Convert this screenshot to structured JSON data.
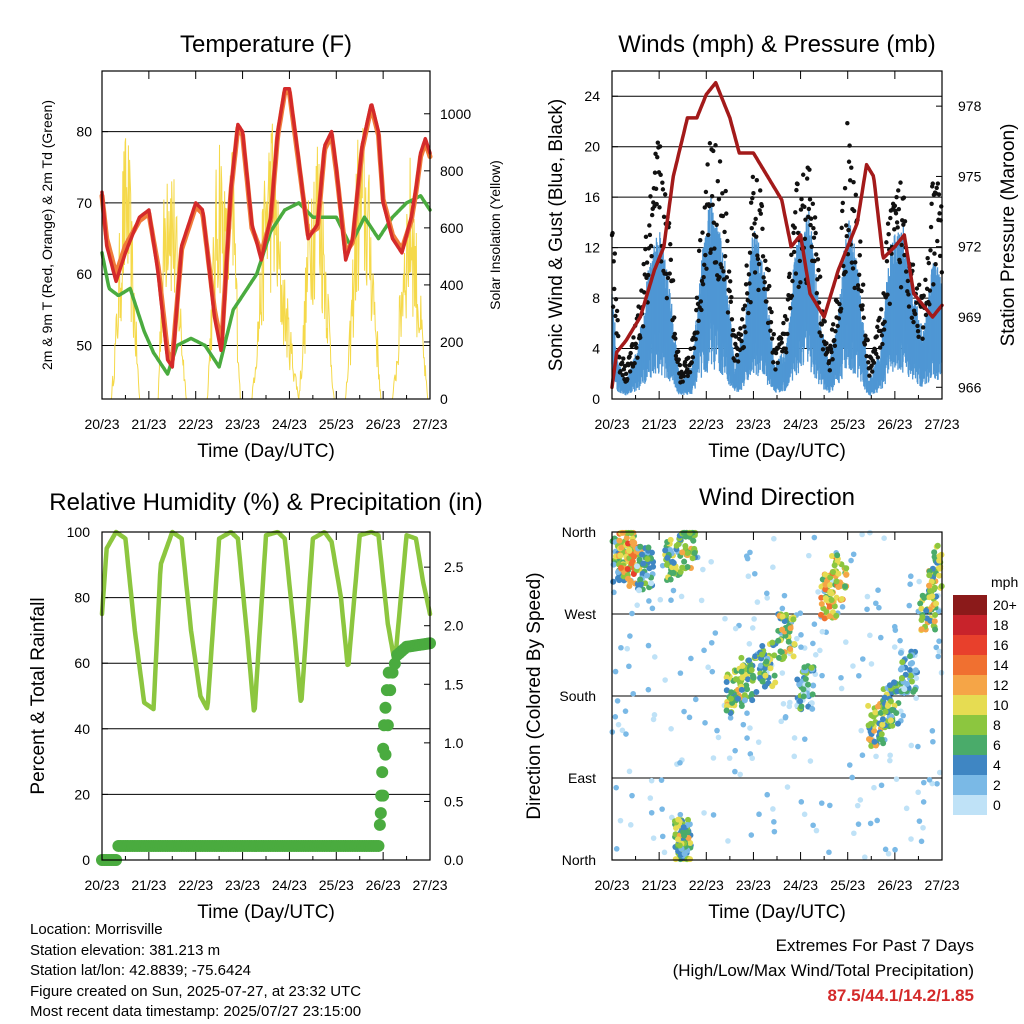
{
  "chart_data": [
    {
      "type": "line",
      "title": "Temperature (F)",
      "xlabel": "Time (Day/UTC)",
      "ylabel": "2m & 9m T (Red, Orange) & 2m Td (Green)",
      "y2label": "Solar Insolation (Yellow)",
      "x_ticks": [
        "20/23",
        "21/23",
        "22/23",
        "23/23",
        "24/23",
        "25/23",
        "26/23",
        "27/23"
      ],
      "xlim": [
        0,
        7
      ],
      "ylim": [
        42.5,
        88.5
      ],
      "y_ticks": [
        50,
        60,
        70,
        80
      ],
      "y2lim": [
        0,
        1150
      ],
      "y2_ticks": [
        0,
        200,
        400,
        600,
        800,
        1000
      ],
      "grid": true,
      "series": [
        {
          "color": "#d42a2a",
          "x": [
            0,
            0.1,
            0.3,
            0.5,
            0.8,
            1.0,
            1.2,
            1.4,
            1.5,
            1.7,
            1.9,
            2.0,
            2.15,
            2.4,
            2.55,
            2.75,
            2.9,
            3.0,
            3.2,
            3.4,
            3.6,
            3.75,
            3.9,
            4.0,
            4.2,
            4.4,
            4.6,
            4.75,
            4.9,
            5.0,
            5.2,
            5.35,
            5.55,
            5.75,
            5.9,
            6.0,
            6.2,
            6.4,
            6.6,
            6.7,
            6.8,
            6.9,
            7.0
          ],
          "values": [
            71.5,
            64,
            59,
            63,
            68,
            69,
            60,
            48,
            47,
            64,
            68,
            70,
            69,
            54,
            49,
            72,
            81,
            80,
            67,
            62,
            68,
            80,
            86,
            86,
            76,
            65,
            67,
            78,
            80,
            75,
            62,
            65,
            78,
            84,
            80,
            70,
            65,
            63,
            68,
            72,
            77,
            79,
            77
          ]
        },
        {
          "color": "#f07c3a",
          "x": [
            0,
            0.1,
            0.3,
            0.5,
            0.8,
            1.0,
            1.2,
            1.4,
            1.5,
            1.7,
            1.9,
            2.0,
            2.15,
            2.4,
            2.55,
            2.75,
            2.9,
            3.0,
            3.2,
            3.4,
            3.6,
            3.75,
            3.9,
            4.0,
            4.2,
            4.4,
            4.6,
            4.75,
            4.9,
            5.0,
            5.2,
            5.35,
            5.55,
            5.75,
            5.9,
            6.0,
            6.2,
            6.4,
            6.6,
            6.7,
            6.8,
            6.9,
            7.0
          ],
          "values": [
            71,
            65,
            60,
            64,
            67.5,
            68.5,
            61,
            49,
            48,
            63.5,
            67.5,
            69.5,
            68.5,
            55,
            50,
            71.5,
            80.5,
            79.5,
            66.5,
            63,
            67.5,
            79.5,
            85.5,
            85.5,
            75.5,
            65.5,
            66.5,
            77.5,
            79.5,
            74.5,
            63,
            64.5,
            77.5,
            83.5,
            79.5,
            70.5,
            65.5,
            63.5,
            67.5,
            71.5,
            76.5,
            78.5,
            76.5
          ]
        },
        {
          "color": "#4aab3f",
          "x": [
            0,
            0.15,
            0.35,
            0.6,
            0.9,
            1.1,
            1.4,
            1.6,
            1.9,
            2.2,
            2.5,
            2.8,
            3.0,
            3.3,
            3.6,
            3.9,
            4.2,
            4.5,
            4.8,
            5.0,
            5.3,
            5.6,
            5.9,
            6.2,
            6.5,
            6.8,
            7.0
          ],
          "values": [
            63,
            58,
            57,
            58,
            52,
            49,
            46,
            50,
            51,
            50,
            47,
            55,
            57,
            60,
            66,
            69,
            70,
            68,
            68,
            68,
            64,
            68,
            65,
            68,
            70,
            71,
            69
          ]
        },
        {
          "color": "#f5d94a",
          "axis": "y2",
          "x": [
            0,
            0.2,
            0.3,
            0.45,
            0.55,
            0.65,
            0.8,
            1.2,
            1.25,
            1.4,
            1.55,
            1.7,
            1.8,
            2.25,
            2.35,
            2.5,
            2.65,
            2.8,
            2.95,
            3.2,
            3.35,
            3.5,
            3.65,
            3.8,
            4.2,
            4.3,
            4.45,
            4.6,
            4.75,
            4.95,
            5.2,
            5.3,
            5.45,
            5.6,
            5.75,
            5.95,
            6.2,
            6.3,
            6.45,
            6.6,
            6.75,
            6.95,
            7.0
          ],
          "values": [
            0,
            0,
            300,
            900,
            1000,
            600,
            0,
            0,
            400,
            1100,
            800,
            300,
            0,
            0,
            500,
            1050,
            700,
            950,
            0,
            0,
            400,
            950,
            1050,
            600,
            0,
            300,
            900,
            1000,
            700,
            0,
            0,
            300,
            950,
            1000,
            700,
            0,
            0,
            200,
            700,
            900,
            500,
            0,
            0
          ]
        }
      ]
    },
    {
      "type": "scatter",
      "title": "Winds (mph) & Pressure (mb)",
      "xlabel": "Time (Day/UTC)",
      "ylabel": "Sonic Wind & Gust (Blue, Black)",
      "y2label": "Station Pressure (Maroon)",
      "x_ticks": [
        "20/23",
        "21/23",
        "22/23",
        "23/23",
        "24/23",
        "25/23",
        "26/23",
        "27/23"
      ],
      "xlim": [
        0,
        7
      ],
      "ylim": [
        0,
        26
      ],
      "y_ticks": [
        0,
        4,
        8,
        12,
        16,
        20,
        24
      ],
      "y2lim": [
        965.5,
        979.5
      ],
      "y2_ticks": [
        966,
        969,
        972,
        975,
        978
      ],
      "grid": true,
      "series": [
        {
          "color": "#a31a1a",
          "axis": "y2",
          "x": [
            0,
            0.1,
            0.3,
            0.6,
            0.9,
            1.1,
            1.3,
            1.6,
            1.8,
            2.0,
            2.2,
            2.5,
            2.7,
            3.0,
            3.3,
            3.6,
            3.8,
            4.0,
            4.2,
            4.5,
            4.8,
            5.0,
            5.2,
            5.4,
            5.55,
            5.75,
            6.0,
            6.2,
            6.4,
            6.6,
            6.8,
            7.0
          ],
          "values": [
            966,
            967.5,
            968,
            969,
            971,
            972,
            975,
            977.5,
            977.5,
            978.5,
            979,
            977.5,
            976,
            976,
            975,
            974,
            972,
            972.5,
            970,
            969,
            971,
            972,
            973,
            975.5,
            975,
            971.5,
            972,
            972.5,
            970,
            969.5,
            969,
            969.5
          ]
        },
        {
          "color": "#4f97d4",
          "x": [
            0,
            0.15,
            0.3,
            0.55,
            0.8,
            1.0,
            1.2,
            1.45,
            1.7,
            1.9,
            2.1,
            2.4,
            2.6,
            2.8,
            3.0,
            3.2,
            3.45,
            3.7,
            3.9,
            4.2,
            4.4,
            4.6,
            4.8,
            5.0,
            5.2,
            5.45,
            5.7,
            5.9,
            6.2,
            6.4,
            6.6,
            6.8,
            7.0
          ],
          "values": [
            6,
            2,
            1,
            3,
            8,
            10,
            7,
            1,
            2,
            8,
            12,
            8,
            2,
            4,
            10,
            8,
            2,
            3,
            9,
            11,
            5,
            2,
            5,
            11,
            8,
            1,
            3,
            9,
            10,
            6,
            4,
            8,
            7
          ]
        },
        {
          "color": "#111111",
          "x": [
            0,
            0.15,
            0.3,
            0.55,
            0.8,
            1.0,
            1.2,
            1.45,
            1.7,
            1.9,
            2.1,
            2.4,
            2.6,
            2.8,
            3.0,
            3.2,
            3.45,
            3.7,
            3.9,
            4.2,
            4.4,
            4.6,
            4.8,
            5.0,
            5.2,
            5.45,
            5.7,
            5.9,
            6.2,
            6.4,
            6.6,
            6.8,
            7.0
          ],
          "values": [
            15,
            4,
            2,
            6,
            14,
            19,
            13,
            2,
            4,
            13,
            19,
            15,
            4,
            7,
            16,
            14,
            4,
            6,
            15,
            17,
            9,
            3,
            9,
            20,
            14,
            3,
            6,
            14,
            16,
            10,
            7,
            15,
            16
          ]
        }
      ]
    },
    {
      "type": "line",
      "title": "Relative Humidity (%) & Precipitation (in)",
      "xlabel": "Time (Day/UTC)",
      "ylabel": "Percent & Total Rainfall",
      "x_ticks": [
        "20/23",
        "21/23",
        "22/23",
        "23/23",
        "24/23",
        "25/23",
        "26/23",
        "27/23"
      ],
      "xlim": [
        0,
        7
      ],
      "ylim": [
        0,
        100
      ],
      "y_ticks": [
        0,
        20,
        40,
        60,
        80,
        100
      ],
      "y2lim": [
        0,
        2.8
      ],
      "y2_ticks": [
        "0.0",
        "0.5",
        "1.0",
        "1.5",
        "2.0",
        "2.5"
      ],
      "grid": true,
      "series": [
        {
          "color": "#8cc63f",
          "x": [
            0,
            0.1,
            0.3,
            0.5,
            0.7,
            0.9,
            1.1,
            1.25,
            1.5,
            1.7,
            1.9,
            2.1,
            2.25,
            2.5,
            2.75,
            2.9,
            3.1,
            3.25,
            3.5,
            3.75,
            3.9,
            4.1,
            4.25,
            4.5,
            4.75,
            4.9,
            5.1,
            5.25,
            5.5,
            5.75,
            5.9,
            6.1,
            6.25,
            6.5,
            6.7,
            6.85,
            7.0
          ],
          "values": [
            75,
            95,
            100,
            98,
            70,
            48,
            46,
            90,
            100,
            98,
            70,
            50,
            46,
            98,
            100,
            98,
            68,
            44,
            99,
            100,
            98,
            70,
            47,
            98,
            100,
            97,
            80,
            58,
            99,
            100,
            99,
            72,
            60,
            99,
            98,
            85,
            75
          ]
        },
        {
          "color": "#4aab3f",
          "axis": "y2",
          "x": [
            0,
            0.3,
            0.35,
            1.0,
            2.0,
            3.0,
            4.0,
            5.0,
            5.9,
            5.95,
            6.0,
            6.05,
            6.1,
            6.15,
            6.2,
            6.3,
            6.5,
            7.0
          ],
          "values": [
            0,
            0,
            0.12,
            0.12,
            0.12,
            0.12,
            0.12,
            0.12,
            0.12,
            0.4,
            0.55,
            0.9,
            1.15,
            1.45,
            1.6,
            1.75,
            1.82,
            1.85
          ]
        }
      ]
    },
    {
      "type": "scatter",
      "title": "Wind Direction",
      "xlabel": "Time (Day/UTC)",
      "ylabel": "Direction (Colored By Speed)",
      "x_ticks": [
        "20/23",
        "21/23",
        "22/23",
        "23/23",
        "24/23",
        "25/23",
        "26/23",
        "27/23"
      ],
      "xlim": [
        0,
        7
      ],
      "y_ticks": [
        "North",
        "West",
        "South",
        "East",
        "North"
      ],
      "grid": true,
      "legend": {
        "title": "mph",
        "position": "right",
        "labels": [
          "20+",
          "18",
          "16",
          "14",
          "12",
          "10",
          "8",
          "6",
          "4",
          "2",
          "0"
        ],
        "colors": [
          "#8b1a1a",
          "#c8232b",
          "#e8402c",
          "#f07030",
          "#f5a547",
          "#e6dc52",
          "#8cc63f",
          "#4aab6a",
          "#3f86c3",
          "#7ab9e6",
          "#bfe2f7"
        ]
      },
      "clusters": [
        {
          "x": 0.1,
          "dir": 330,
          "speed": 6
        },
        {
          "x": 0.3,
          "dir": 340,
          "speed": 10
        },
        {
          "x": 0.5,
          "dir": 325,
          "speed": 12
        },
        {
          "x": 0.7,
          "dir": 320,
          "speed": 4
        },
        {
          "x": 1.3,
          "dir": 330,
          "speed": 6
        },
        {
          "x": 1.6,
          "dir": 345,
          "speed": 8
        },
        {
          "x": 1.5,
          "dir": 20,
          "speed": 6
        },
        {
          "x": 2.6,
          "dir": 185,
          "speed": 8
        },
        {
          "x": 2.9,
          "dir": 200,
          "speed": 6
        },
        {
          "x": 3.3,
          "dir": 215,
          "speed": 6
        },
        {
          "x": 3.7,
          "dir": 245,
          "speed": 8
        },
        {
          "x": 4.1,
          "dir": 190,
          "speed": 4
        },
        {
          "x": 4.6,
          "dir": 290,
          "speed": 10
        },
        {
          "x": 4.8,
          "dir": 310,
          "speed": 10
        },
        {
          "x": 5.6,
          "dir": 150,
          "speed": 8
        },
        {
          "x": 5.9,
          "dir": 170,
          "speed": 6
        },
        {
          "x": 6.3,
          "dir": 205,
          "speed": 4
        },
        {
          "x": 6.7,
          "dir": 275,
          "speed": 8
        },
        {
          "x": 6.9,
          "dir": 320,
          "speed": 8
        }
      ]
    }
  ],
  "footer": {
    "location": "Location: Morrisville",
    "elevation": "Station elevation: 381.213 m",
    "latlon": "Station lat/lon: 42.8839; -75.6424",
    "created": "Figure created on Sun, 2025-07-27, at 23:32 UTC",
    "timestamp": "Most recent data timestamp: 2025/07/27 23:15:00"
  },
  "extremes": {
    "title": "Extremes For Past 7 Days",
    "subtitle": "(High/Low/Max Wind/Total Precipitation)",
    "values": "87.5/44.1/14.2/1.85"
  }
}
